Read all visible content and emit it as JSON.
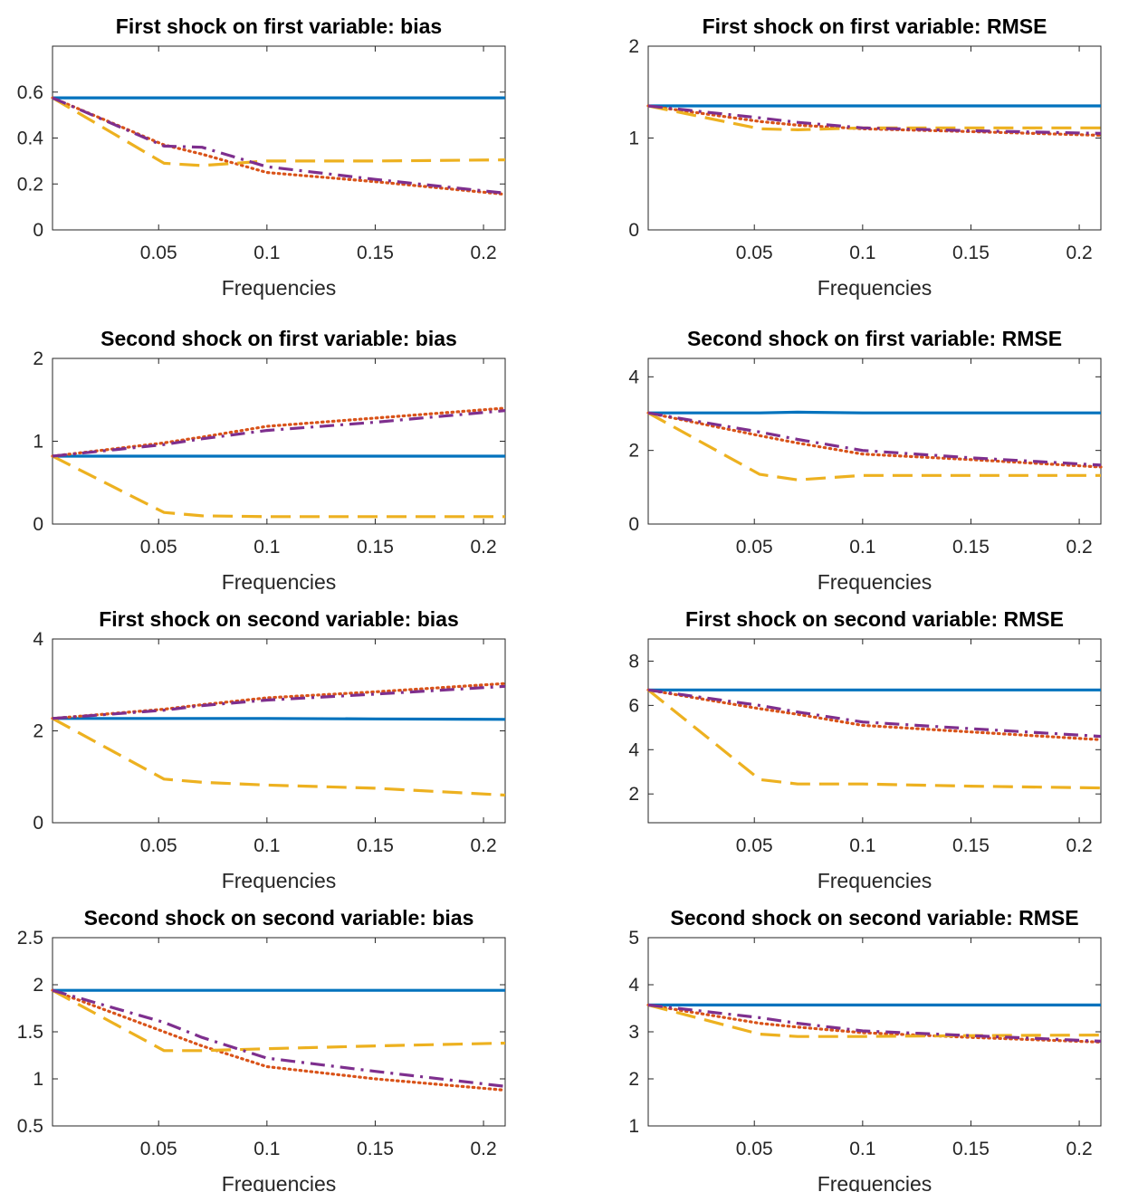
{
  "chart_data": [
    {
      "type": "line",
      "title": "First shock on first variable: bias",
      "xlabel": "Frequencies",
      "ylabel": "",
      "xlim": [
        0.001,
        0.21
      ],
      "ylim": [
        0,
        0.8
      ],
      "xticks": [
        "0.05",
        "0.1",
        "0.15",
        "0.2"
      ],
      "yticks": [
        "0",
        "0.2",
        "0.4",
        "0.6"
      ],
      "x": [
        0.001,
        0.0525,
        0.07,
        0.1,
        0.15,
        0.21
      ],
      "series": [
        {
          "style": "solid",
          "color": "#0072BD",
          "values": [
            0.575,
            0.575,
            0.575,
            0.575,
            0.575,
            0.575
          ]
        },
        {
          "style": "dotted",
          "color": "#D95319",
          "values": [
            0.575,
            0.37,
            0.33,
            0.25,
            0.21,
            0.155
          ]
        },
        {
          "style": "dashed",
          "color": "#EDB120",
          "values": [
            0.575,
            0.29,
            0.28,
            0.3,
            0.3,
            0.305
          ]
        },
        {
          "style": "dashdot",
          "color": "#7E2F8E",
          "values": [
            0.575,
            0.365,
            0.36,
            0.275,
            0.22,
            0.16
          ]
        }
      ]
    },
    {
      "type": "line",
      "title": "First shock on first variable: RMSE",
      "xlabel": "Frequencies",
      "ylabel": "",
      "xlim": [
        0.001,
        0.21
      ],
      "ylim": [
        0,
        2
      ],
      "xticks": [
        "0.05",
        "0.1",
        "0.15",
        "0.2"
      ],
      "yticks": [
        "0",
        "1",
        "2"
      ],
      "x": [
        0.001,
        0.0525,
        0.07,
        0.1,
        0.15,
        0.21
      ],
      "series": [
        {
          "style": "solid",
          "color": "#0072BD",
          "values": [
            1.35,
            1.35,
            1.35,
            1.35,
            1.35,
            1.35
          ]
        },
        {
          "style": "dotted",
          "color": "#D95319",
          "values": [
            1.35,
            1.18,
            1.14,
            1.1,
            1.07,
            1.03
          ]
        },
        {
          "style": "dashed",
          "color": "#EDB120",
          "values": [
            1.35,
            1.1,
            1.09,
            1.11,
            1.11,
            1.11
          ]
        },
        {
          "style": "dashdot",
          "color": "#7E2F8E",
          "values": [
            1.35,
            1.22,
            1.17,
            1.11,
            1.08,
            1.05
          ]
        }
      ]
    },
    {
      "type": "line",
      "title": "Second shock on first variable: bias",
      "xlabel": "Frequencies",
      "ylabel": "",
      "xlim": [
        0.001,
        0.21
      ],
      "ylim": [
        0,
        2
      ],
      "xticks": [
        "0.05",
        "0.1",
        "0.15",
        "0.2"
      ],
      "yticks": [
        "0",
        "1",
        "2"
      ],
      "x": [
        0.001,
        0.0525,
        0.07,
        0.1,
        0.15,
        0.21
      ],
      "series": [
        {
          "style": "solid",
          "color": "#0072BD",
          "values": [
            0.82,
            0.82,
            0.82,
            0.82,
            0.82,
            0.82
          ]
        },
        {
          "style": "dotted",
          "color": "#D95319",
          "values": [
            0.82,
            0.98,
            1.05,
            1.18,
            1.28,
            1.4
          ]
        },
        {
          "style": "dashed",
          "color": "#EDB120",
          "values": [
            0.82,
            0.14,
            0.1,
            0.09,
            0.09,
            0.09
          ]
        },
        {
          "style": "dashdot",
          "color": "#7E2F8E",
          "values": [
            0.82,
            0.96,
            1.03,
            1.13,
            1.23,
            1.37
          ]
        }
      ]
    },
    {
      "type": "line",
      "title": "Second shock on first variable: RMSE",
      "xlabel": "Frequencies",
      "ylabel": "",
      "xlim": [
        0.001,
        0.21
      ],
      "ylim": [
        0,
        4.5
      ],
      "xticks": [
        "0.05",
        "0.1",
        "0.15",
        "0.2"
      ],
      "yticks": [
        "0",
        "2",
        "4"
      ],
      "x": [
        0.001,
        0.0525,
        0.07,
        0.1,
        0.15,
        0.21
      ],
      "series": [
        {
          "style": "solid",
          "color": "#0072BD",
          "values": [
            3.02,
            3.02,
            3.04,
            3.02,
            3.02,
            3.02
          ]
        },
        {
          "style": "dotted",
          "color": "#D95319",
          "values": [
            3.02,
            2.4,
            2.2,
            1.9,
            1.75,
            1.55
          ]
        },
        {
          "style": "dashed",
          "color": "#EDB120",
          "values": [
            3.02,
            1.35,
            1.2,
            1.32,
            1.32,
            1.32
          ]
        },
        {
          "style": "dashdot",
          "color": "#7E2F8E",
          "values": [
            3.02,
            2.5,
            2.3,
            2.0,
            1.8,
            1.6
          ]
        }
      ]
    },
    {
      "type": "line",
      "title": "First shock on second variable: bias",
      "xlabel": "Frequencies",
      "ylabel": "",
      "xlim": [
        0.001,
        0.21
      ],
      "ylim": [
        0,
        4
      ],
      "xticks": [
        "0.05",
        "0.1",
        "0.15",
        "0.2"
      ],
      "yticks": [
        "0",
        "2",
        "4"
      ],
      "x": [
        0.001,
        0.0525,
        0.07,
        0.1,
        0.15,
        0.21
      ],
      "series": [
        {
          "style": "solid",
          "color": "#0072BD",
          "values": [
            2.27,
            2.27,
            2.27,
            2.27,
            2.26,
            2.25
          ]
        },
        {
          "style": "dotted",
          "color": "#D95319",
          "values": [
            2.27,
            2.47,
            2.57,
            2.72,
            2.85,
            3.03
          ]
        },
        {
          "style": "dashed",
          "color": "#EDB120",
          "values": [
            2.27,
            0.95,
            0.88,
            0.82,
            0.75,
            0.6
          ]
        },
        {
          "style": "dashdot",
          "color": "#7E2F8E",
          "values": [
            2.27,
            2.45,
            2.55,
            2.67,
            2.8,
            2.97
          ]
        }
      ]
    },
    {
      "type": "line",
      "title": "First shock on second variable: RMSE",
      "xlabel": "Frequencies",
      "ylabel": "",
      "xlim": [
        0.001,
        0.21
      ],
      "ylim": [
        0.7,
        9
      ],
      "xticks": [
        "0.05",
        "0.1",
        "0.15",
        "0.2"
      ],
      "yticks": [
        "2",
        "4",
        "6",
        "8"
      ],
      "x": [
        0.001,
        0.0525,
        0.07,
        0.1,
        0.15,
        0.21
      ],
      "series": [
        {
          "style": "solid",
          "color": "#0072BD",
          "values": [
            6.7,
            6.7,
            6.7,
            6.7,
            6.7,
            6.7
          ]
        },
        {
          "style": "dotted",
          "color": "#D95319",
          "values": [
            6.7,
            5.85,
            5.6,
            5.1,
            4.8,
            4.45
          ]
        },
        {
          "style": "dashed",
          "color": "#EDB120",
          "values": [
            6.7,
            2.65,
            2.45,
            2.45,
            2.35,
            2.27
          ]
        },
        {
          "style": "dashdot",
          "color": "#7E2F8E",
          "values": [
            6.7,
            6.0,
            5.7,
            5.25,
            4.95,
            4.6
          ]
        }
      ]
    },
    {
      "type": "line",
      "title": "Second shock on second variable: bias",
      "xlabel": "Frequencies",
      "ylabel": "",
      "xlim": [
        0.001,
        0.21
      ],
      "ylim": [
        0.5,
        2.5
      ],
      "xticks": [
        "0.05",
        "0.1",
        "0.15",
        "0.2"
      ],
      "yticks": [
        "0.5",
        "1",
        "1.5",
        "2",
        "2.5"
      ],
      "x": [
        0.001,
        0.0525,
        0.07,
        0.1,
        0.15,
        0.21
      ],
      "series": [
        {
          "style": "solid",
          "color": "#0072BD",
          "values": [
            1.94,
            1.94,
            1.94,
            1.94,
            1.94,
            1.94
          ]
        },
        {
          "style": "dotted",
          "color": "#D95319",
          "values": [
            1.94,
            1.5,
            1.35,
            1.13,
            1.0,
            0.88
          ]
        },
        {
          "style": "dashed",
          "color": "#EDB120",
          "values": [
            1.94,
            1.3,
            1.3,
            1.32,
            1.35,
            1.38
          ]
        },
        {
          "style": "dashdot",
          "color": "#7E2F8E",
          "values": [
            1.94,
            1.6,
            1.44,
            1.22,
            1.08,
            0.92
          ]
        }
      ]
    },
    {
      "type": "line",
      "title": "Second shock on second variable: RMSE",
      "xlabel": "Frequencies",
      "ylabel": "",
      "xlim": [
        0.001,
        0.21
      ],
      "ylim": [
        1,
        5
      ],
      "xticks": [
        "0.05",
        "0.1",
        "0.15",
        "0.2"
      ],
      "yticks": [
        "1",
        "2",
        "3",
        "4",
        "5"
      ],
      "x": [
        0.001,
        0.0525,
        0.07,
        0.1,
        0.15,
        0.21
      ],
      "series": [
        {
          "style": "solid",
          "color": "#0072BD",
          "values": [
            3.57,
            3.57,
            3.57,
            3.57,
            3.57,
            3.57
          ]
        },
        {
          "style": "dotted",
          "color": "#D95319",
          "values": [
            3.57,
            3.18,
            3.1,
            2.98,
            2.88,
            2.78
          ]
        },
        {
          "style": "dashed",
          "color": "#EDB120",
          "values": [
            3.57,
            2.95,
            2.9,
            2.9,
            2.92,
            2.93
          ]
        },
        {
          "style": "dashdot",
          "color": "#7E2F8E",
          "values": [
            3.57,
            3.3,
            3.18,
            3.02,
            2.92,
            2.8
          ]
        }
      ]
    }
  ]
}
